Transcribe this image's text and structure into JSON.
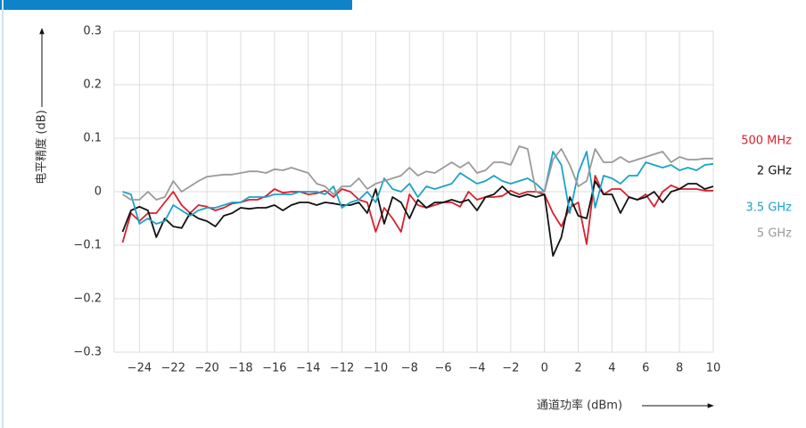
{
  "chart_data": {
    "type": "line",
    "x_label": "通道功率 (dBm)",
    "y_label": "电平精度 (dB)",
    "x": [
      -25,
      -24.5,
      -24,
      -23.5,
      -23,
      -22.5,
      -22,
      -21.5,
      -21,
      -20.5,
      -20,
      -19.5,
      -19,
      -18.5,
      -18,
      -17.5,
      -17,
      -16.5,
      -16,
      -15.5,
      -15,
      -14.5,
      -14,
      -13.5,
      -13,
      -12.5,
      -12,
      -11.5,
      -11,
      -10.5,
      -10,
      -9.5,
      -9,
      -8.5,
      -8,
      -7.5,
      -7,
      -6.5,
      -6,
      -5.5,
      -5,
      -4.5,
      -4,
      -3.5,
      -3,
      -2.5,
      -2,
      -1.5,
      -1,
      -0.5,
      0,
      0.5,
      1,
      1.5,
      2,
      2.5,
      3,
      3.5,
      4,
      4.5,
      5,
      5.5,
      6,
      6.5,
      7,
      7.5,
      8,
      8.5,
      9,
      9.5,
      10
    ],
    "series": [
      {
        "name": "500 MHz",
        "color": "#d7212e",
        "values": [
          -0.095,
          -0.04,
          -0.055,
          -0.04,
          -0.04,
          -0.02,
          0.0,
          -0.025,
          -0.04,
          -0.025,
          -0.028,
          -0.035,
          -0.03,
          -0.022,
          -0.02,
          -0.015,
          -0.015,
          -0.008,
          0.005,
          -0.002,
          0.0,
          0.0,
          -0.005,
          -0.003,
          0.002,
          -0.01,
          0.005,
          0.0,
          -0.015,
          -0.02,
          -0.075,
          -0.03,
          -0.05,
          -0.075,
          -0.005,
          -0.025,
          -0.03,
          -0.025,
          -0.02,
          -0.02,
          -0.028,
          0.0,
          -0.015,
          -0.01,
          -0.01,
          -0.008,
          0.002,
          -0.005,
          0.0,
          0.0,
          -0.005,
          -0.04,
          -0.065,
          -0.03,
          -0.02,
          -0.098,
          0.03,
          -0.005,
          0.005,
          0.005,
          -0.01,
          -0.015,
          -0.005,
          -0.028,
          0.0,
          0.012,
          0.005,
          0.005,
          0.005,
          0.002,
          0.002
        ]
      },
      {
        "name": "2 GHz",
        "color": "#111111",
        "values": [
          -0.075,
          -0.035,
          -0.028,
          -0.035,
          -0.085,
          -0.05,
          -0.065,
          -0.068,
          -0.04,
          -0.05,
          -0.055,
          -0.065,
          -0.045,
          -0.04,
          -0.03,
          -0.032,
          -0.03,
          -0.03,
          -0.025,
          -0.035,
          -0.025,
          -0.02,
          -0.02,
          -0.025,
          -0.02,
          -0.022,
          -0.025,
          -0.025,
          -0.02,
          -0.04,
          0.005,
          -0.06,
          -0.01,
          -0.02,
          -0.05,
          -0.015,
          -0.03,
          -0.02,
          -0.02,
          -0.015,
          -0.02,
          -0.015,
          -0.035,
          -0.01,
          -0.005,
          0.01,
          -0.005,
          -0.01,
          -0.005,
          -0.01,
          -0.005,
          -0.12,
          -0.085,
          -0.01,
          -0.045,
          -0.05,
          0.02,
          -0.005,
          -0.005,
          -0.04,
          -0.01,
          -0.015,
          -0.01,
          0.0,
          -0.02,
          0.0,
          0.005,
          0.015,
          0.015,
          0.005,
          0.01
        ]
      },
      {
        "name": "3.5 GHz",
        "color": "#1ba3c6",
        "values": [
          0.0,
          -0.005,
          -0.06,
          -0.05,
          -0.06,
          -0.055,
          -0.025,
          -0.035,
          -0.045,
          -0.035,
          -0.03,
          -0.03,
          -0.025,
          -0.02,
          -0.02,
          -0.01,
          -0.01,
          -0.01,
          -0.005,
          -0.005,
          -0.005,
          0.0,
          0.0,
          0.0,
          -0.005,
          0.01,
          -0.03,
          -0.02,
          -0.015,
          0.0,
          -0.02,
          0.025,
          0.005,
          0.0,
          0.015,
          -0.01,
          0.01,
          0.005,
          0.01,
          0.015,
          0.035,
          0.025,
          0.015,
          0.02,
          0.03,
          0.02,
          0.015,
          0.02,
          0.025,
          0.015,
          0.0,
          0.075,
          0.05,
          -0.04,
          0.035,
          0.075,
          -0.03,
          0.03,
          0.025,
          0.015,
          0.03,
          0.03,
          0.055,
          0.05,
          0.045,
          0.05,
          0.04,
          0.045,
          0.04,
          0.05,
          0.052
        ]
      },
      {
        "name": "5 GHz",
        "color": "#9a9a9a",
        "values": [
          -0.005,
          -0.015,
          -0.015,
          0.0,
          -0.015,
          -0.01,
          0.02,
          0.0,
          0.01,
          0.02,
          0.028,
          0.03,
          0.032,
          0.032,
          0.035,
          0.038,
          0.038,
          0.035,
          0.042,
          0.04,
          0.045,
          0.04,
          0.035,
          0.015,
          0.01,
          -0.005,
          0.01,
          0.01,
          0.025,
          0.005,
          0.015,
          0.02,
          0.025,
          0.03,
          0.045,
          0.03,
          0.038,
          0.035,
          0.045,
          0.055,
          0.045,
          0.055,
          0.035,
          0.04,
          0.055,
          0.055,
          0.05,
          0.085,
          0.08,
          0.0,
          0.0,
          0.06,
          0.08,
          0.05,
          0.01,
          0.02,
          0.08,
          0.055,
          0.055,
          0.065,
          0.055,
          0.06,
          0.065,
          0.07,
          0.075,
          0.055,
          0.065,
          0.06,
          0.06,
          0.062,
          0.062
        ]
      }
    ],
    "xlim": [
      -25.5,
      10
    ],
    "ylim": [
      -0.3,
      0.3
    ],
    "xticks": [
      {
        "value": -24,
        "label": "−24"
      },
      {
        "value": -22,
        "label": "−22"
      },
      {
        "value": -20,
        "label": "−20"
      },
      {
        "value": -18,
        "label": "−18"
      },
      {
        "value": -16,
        "label": "−16"
      },
      {
        "value": -14,
        "label": "−14"
      },
      {
        "value": -12,
        "label": "−12"
      },
      {
        "value": -10,
        "label": "−10"
      },
      {
        "value": -8,
        "label": "−8"
      },
      {
        "value": -6,
        "label": "−6"
      },
      {
        "value": -4,
        "label": "−4"
      },
      {
        "value": -2,
        "label": "−2"
      },
      0,
      2,
      4,
      6,
      8,
      10
    ],
    "yticks": [
      0.3,
      0.2,
      0.1,
      0,
      {
        "value": -0.1,
        "label": "−0.1"
      },
      {
        "value": -0.2,
        "label": "−0.2"
      },
      {
        "value": -0.3,
        "label": "−0.3"
      }
    ],
    "grid": true
  }
}
